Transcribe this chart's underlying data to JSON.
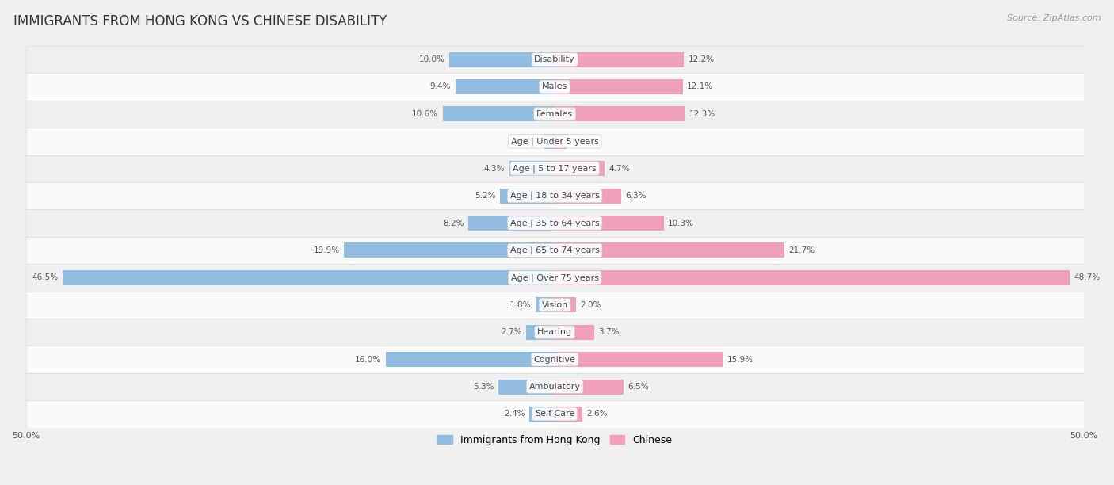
{
  "title": "IMMIGRANTS FROM HONG KONG VS CHINESE DISABILITY",
  "source": "Source: ZipAtlas.com",
  "categories": [
    "Disability",
    "Males",
    "Females",
    "Age | Under 5 years",
    "Age | 5 to 17 years",
    "Age | 18 to 34 years",
    "Age | 35 to 64 years",
    "Age | 65 to 74 years",
    "Age | Over 75 years",
    "Vision",
    "Hearing",
    "Cognitive",
    "Ambulatory",
    "Self-Care"
  ],
  "hk_values": [
    10.0,
    9.4,
    10.6,
    0.95,
    4.3,
    5.2,
    8.2,
    19.9,
    46.5,
    1.8,
    2.7,
    16.0,
    5.3,
    2.4
  ],
  "cn_values": [
    12.2,
    12.1,
    12.3,
    1.1,
    4.7,
    6.3,
    10.3,
    21.7,
    48.7,
    2.0,
    3.7,
    15.9,
    6.5,
    2.6
  ],
  "hk_color": "#92bce0",
  "cn_color": "#f0a0b8",
  "hk_label": "Immigrants from Hong Kong",
  "cn_label": "Chinese",
  "axis_max": 50.0,
  "bg_color": "#f0f0f0",
  "row_color_even": "#f0f0f0",
  "row_color_odd": "#fafafa",
  "title_fontsize": 12,
  "source_fontsize": 8,
  "label_fontsize": 8,
  "value_fontsize": 7.5,
  "bar_height": 0.55
}
